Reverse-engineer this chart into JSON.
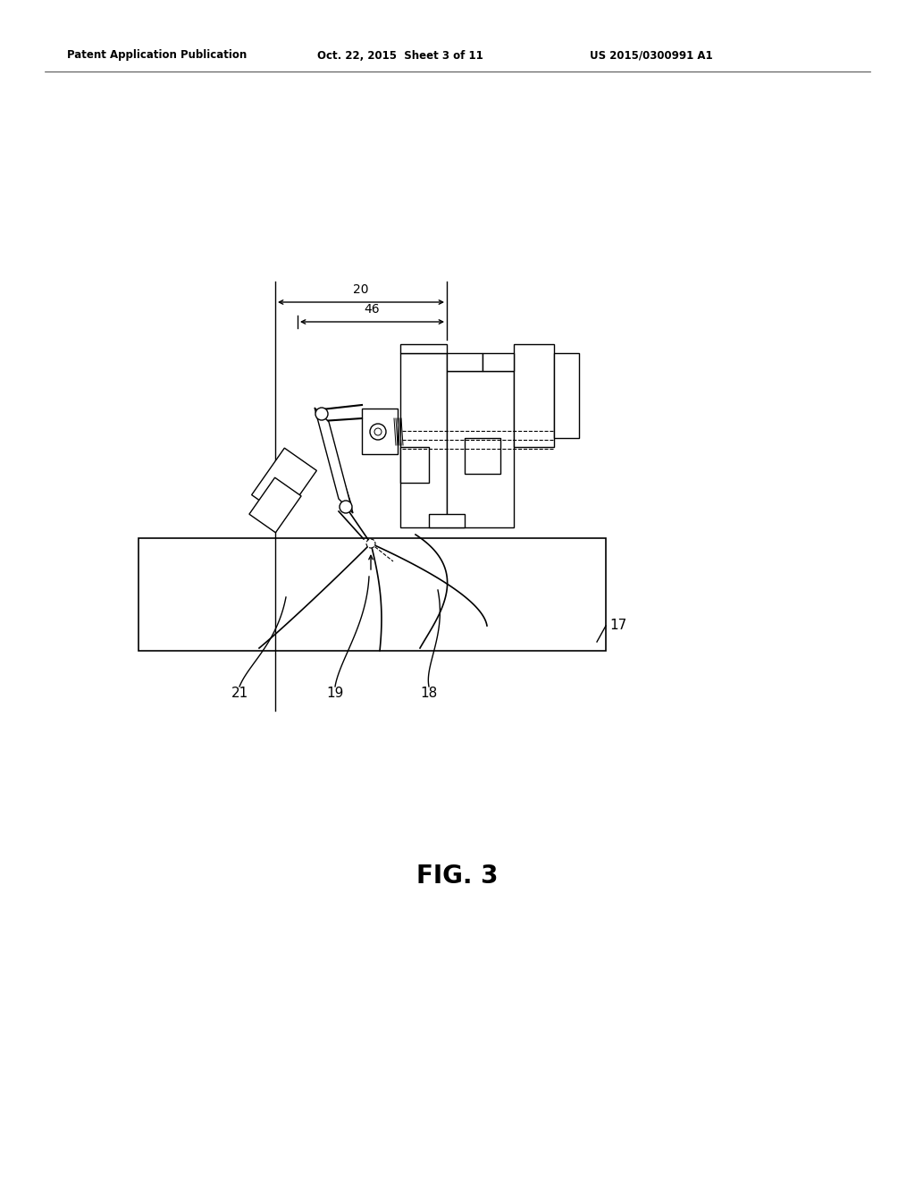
{
  "title": "FIG. 3",
  "header_left": "Patent Application Publication",
  "header_center": "Oct. 22, 2015  Sheet 3 of 11",
  "header_right": "US 2015/0300991 A1",
  "bg_color": "#ffffff",
  "line_color": "#000000",
  "dim_label_20": "20",
  "dim_label_46": "46",
  "label_17": "17",
  "label_18": "18",
  "label_19": "19",
  "label_21": "21",
  "fig_label": "FIG. 3"
}
